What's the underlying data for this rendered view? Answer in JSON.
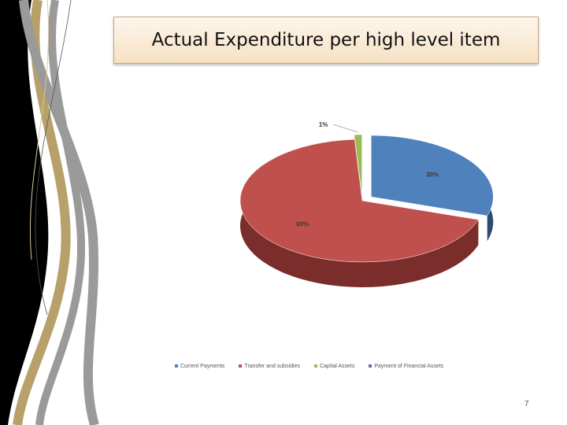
{
  "slide": {
    "title": "Actual Expenditure per high level item",
    "page_number": "7"
  },
  "chart_data": {
    "type": "pie",
    "title": "",
    "legend_position": "bottom",
    "slices": [
      {
        "name": "Current Payments",
        "value": 30,
        "label": "30%",
        "color": "#4f81bd",
        "side_color": "#2e4a6e"
      },
      {
        "name": "Transfer and subsidies",
        "value": 69,
        "label": "69%",
        "color": "#c0504d",
        "side_color": "#7a2d2a"
      },
      {
        "name": "Capital Assets",
        "value": 1,
        "label": "1%",
        "color": "#9bbb59",
        "side_color": "#5f7a30"
      },
      {
        "name": "Payment of Financial Assets",
        "value": 0,
        "label": "",
        "color": "#8064a2",
        "side_color": "#4d3a66"
      }
    ]
  }
}
